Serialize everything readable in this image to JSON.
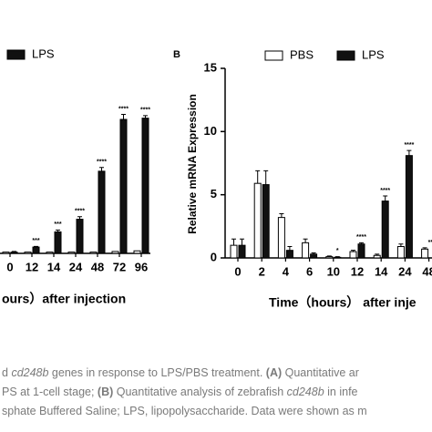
{
  "chart_data": [
    {
      "type": "bar",
      "categories": [
        "0",
        "12",
        "14",
        "24",
        "48",
        "72",
        "96"
      ],
      "series": [
        {
          "color": "#ffffff",
          "values": [
            0.1,
            0.1,
            0.1,
            0.1,
            0.1,
            0.15,
            0.2
          ]
        },
        {
          "name": "LPS",
          "color": "#111111",
          "values": [
            0.1,
            0.5,
            1.7,
            2.7,
            6.5,
            10.6,
            10.7
          ],
          "errors": [
            0.05,
            0.05,
            0.15,
            0.2,
            0.3,
            0.4,
            0.2
          ]
        }
      ],
      "significance": [
        null,
        "***",
        "***",
        "****",
        "****",
        "****",
        "****"
      ],
      "xlabel": "ours）after injection",
      "ylim": [
        0,
        15
      ]
    },
    {
      "type": "bar",
      "panel": "B",
      "categories": [
        "0",
        "2",
        "4",
        "6",
        "10",
        "12",
        "14",
        "24",
        "48"
      ],
      "series": [
        {
          "name": "PBS",
          "color": "#ffffff",
          "values": [
            1.0,
            5.9,
            3.2,
            1.2,
            0.1,
            0.5,
            0.2,
            0.9,
            0.7
          ],
          "errors": [
            0.5,
            1.0,
            0.3,
            0.3,
            0.05,
            0.1,
            0.1,
            0.2,
            0.1
          ]
        },
        {
          "name": "LPS",
          "color": "#111111",
          "values": [
            1.0,
            5.8,
            0.6,
            0.3,
            0.05,
            1.1,
            4.5,
            8.1,
            null
          ],
          "errors": [
            0.5,
            1.1,
            0.3,
            0.1,
            0.05,
            0.1,
            0.4,
            0.4,
            null
          ]
        }
      ],
      "significance": [
        null,
        null,
        null,
        null,
        "*",
        "****",
        "****",
        "****",
        "****"
      ],
      "xlabel": "Time（hours） after inje",
      "ylabel": "Relative mRNA Expression",
      "ylim": [
        0,
        15
      ],
      "yticks": [
        0,
        5,
        10,
        15
      ]
    }
  ],
  "caption": [
    [
      {
        "text": "d ",
        "style": "n"
      },
      {
        "text": "cd248b",
        "style": "i"
      },
      {
        "text": " genes in response to LPS/PBS treatment. ",
        "style": "n"
      },
      {
        "text": "(A)",
        "style": "b"
      },
      {
        "text": " Quantitative ar",
        "style": "n"
      }
    ],
    [
      {
        "text": "PS at 1-cell stage; ",
        "style": "n"
      },
      {
        "text": "(B)",
        "style": "b"
      },
      {
        "text": " Quantitative analysis of zebrafish ",
        "style": "n"
      },
      {
        "text": "cd248b",
        "style": "i"
      },
      {
        "text": " in infe",
        "style": "n"
      }
    ],
    [
      {
        "text": "sphate Buffered Saline; LPS, lipopolysaccharide. Data were shown as m",
        "style": "n"
      }
    ]
  ]
}
